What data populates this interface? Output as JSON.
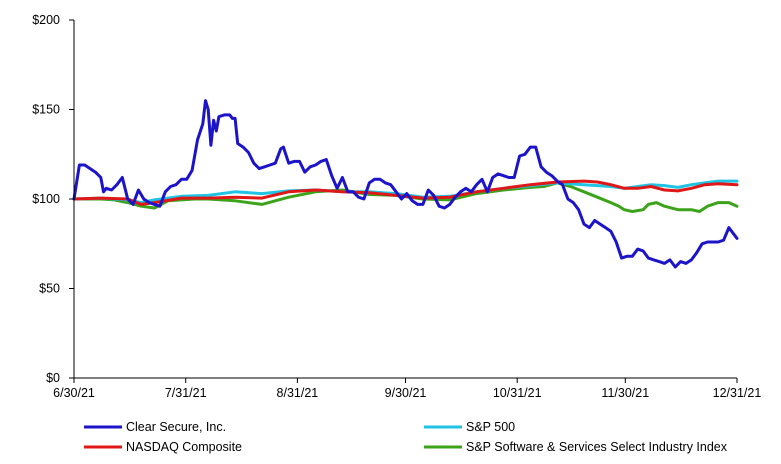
{
  "chart_data": {
    "type": "line",
    "title": "",
    "xlabel": "",
    "ylabel": "",
    "x_labels": [
      "6/30/21",
      "7/31/21",
      "8/31/21",
      "9/30/21",
      "10/31/21",
      "11/30/21",
      "12/31/21"
    ],
    "y_ticks": [
      0,
      50,
      100,
      150,
      200
    ],
    "y_tick_labels": [
      "$0",
      "$50",
      "$100",
      "$150",
      "$200"
    ],
    "ylim": [
      0,
      200
    ],
    "xlim_days": [
      0,
      184
    ],
    "grid": false,
    "legend_position": "bottom",
    "series": [
      {
        "name": "Clear Secure, Inc.",
        "color": "#1c14c8",
        "points": [
          [
            0,
            100
          ],
          [
            2,
            119
          ],
          [
            4,
            119
          ],
          [
            6,
            117
          ],
          [
            8,
            115
          ],
          [
            10,
            112
          ],
          [
            11,
            104
          ],
          [
            12,
            106
          ],
          [
            14,
            105
          ],
          [
            16,
            108
          ],
          [
            18,
            112
          ],
          [
            20,
            100
          ],
          [
            22,
            97
          ],
          [
            24,
            105
          ],
          [
            26,
            100
          ],
          [
            28,
            98
          ],
          [
            30,
            97
          ],
          [
            32,
            96
          ],
          [
            34,
            104
          ],
          [
            36,
            107
          ],
          [
            38,
            108
          ],
          [
            40,
            111
          ],
          [
            42,
            111
          ],
          [
            44,
            116
          ],
          [
            46,
            133
          ],
          [
            48,
            142
          ],
          [
            49,
            155
          ],
          [
            50,
            150
          ],
          [
            51,
            130
          ],
          [
            52,
            144
          ],
          [
            53,
            138
          ],
          [
            54,
            146
          ],
          [
            56,
            147
          ],
          [
            58,
            147
          ],
          [
            59,
            145
          ],
          [
            60,
            145
          ],
          [
            61,
            131
          ],
          [
            63,
            129
          ],
          [
            65,
            126
          ],
          [
            67,
            120
          ],
          [
            69,
            117
          ],
          [
            71,
            118
          ],
          [
            73,
            119
          ],
          [
            75,
            120
          ],
          [
            77,
            128
          ],
          [
            78,
            129
          ],
          [
            80,
            120
          ],
          [
            82,
            121
          ],
          [
            84,
            121
          ],
          [
            86,
            115
          ],
          [
            88,
            118
          ],
          [
            90,
            119
          ],
          [
            92,
            121
          ],
          [
            94,
            122
          ],
          [
            96,
            113
          ],
          [
            98,
            106
          ],
          [
            100,
            112
          ],
          [
            102,
            104
          ],
          [
            104,
            104
          ],
          [
            106,
            101
          ],
          [
            108,
            100
          ],
          [
            110,
            109
          ],
          [
            112,
            111
          ],
          [
            114,
            111
          ],
          [
            116,
            109
          ],
          [
            118,
            108
          ],
          [
            120,
            104
          ],
          [
            122,
            100
          ],
          [
            124,
            103
          ],
          [
            126,
            99
          ],
          [
            128,
            97
          ],
          [
            130,
            97
          ],
          [
            132,
            105
          ],
          [
            134,
            102
          ],
          [
            136,
            96
          ],
          [
            138,
            95
          ],
          [
            140,
            97
          ],
          [
            142,
            101
          ],
          [
            144,
            104
          ],
          [
            146,
            106
          ],
          [
            148,
            104
          ],
          [
            150,
            108
          ],
          [
            152,
            111
          ],
          [
            154,
            104
          ],
          [
            156,
            112
          ],
          [
            158,
            114
          ],
          [
            160,
            113
          ],
          [
            162,
            112
          ],
          [
            164,
            112
          ],
          [
            166,
            124
          ],
          [
            168,
            125
          ],
          [
            170,
            129
          ],
          [
            172,
            129
          ],
          [
            174,
            118
          ],
          [
            176,
            115
          ],
          [
            178,
            113
          ],
          [
            180,
            110
          ],
          [
            182,
            108
          ],
          [
            184,
            100
          ],
          [
            186,
            98
          ],
          [
            188,
            94
          ],
          [
            190,
            86
          ],
          [
            192,
            84
          ],
          [
            194,
            88
          ],
          [
            196,
            86
          ],
          [
            198,
            84
          ],
          [
            200,
            82
          ],
          [
            202,
            76
          ],
          [
            204,
            67
          ],
          [
            206,
            68
          ],
          [
            208,
            68
          ],
          [
            210,
            72
          ],
          [
            212,
            71
          ],
          [
            214,
            67
          ],
          [
            216,
            66
          ],
          [
            218,
            65
          ],
          [
            220,
            64
          ],
          [
            222,
            66
          ],
          [
            224,
            62
          ],
          [
            226,
            65
          ],
          [
            228,
            64
          ],
          [
            230,
            66
          ],
          [
            232,
            70
          ],
          [
            234,
            75
          ],
          [
            236,
            76
          ],
          [
            238,
            76
          ],
          [
            240,
            76
          ],
          [
            242,
            77
          ],
          [
            244,
            84
          ],
          [
            246,
            80
          ],
          [
            247,
            78
          ]
        ]
      },
      {
        "name": "S&P 500",
        "color": "#1fc3e3",
        "points": [
          [
            0,
            100
          ],
          [
            10,
            100.5
          ],
          [
            20,
            99.5
          ],
          [
            25,
            98
          ],
          [
            30,
            99.5
          ],
          [
            40,
            101.5
          ],
          [
            50,
            102
          ],
          [
            60,
            104
          ],
          [
            70,
            103
          ],
          [
            80,
            104.5
          ],
          [
            90,
            105
          ],
          [
            100,
            104
          ],
          [
            110,
            104
          ],
          [
            120,
            103
          ],
          [
            130,
            101
          ],
          [
            140,
            101.5
          ],
          [
            150,
            104
          ],
          [
            160,
            106
          ],
          [
            170,
            107.5
          ],
          [
            180,
            109
          ],
          [
            190,
            108
          ],
          [
            200,
            107
          ],
          [
            205,
            106
          ],
          [
            210,
            107
          ],
          [
            215,
            108
          ],
          [
            220,
            107.5
          ],
          [
            225,
            106.5
          ],
          [
            230,
            108
          ],
          [
            235,
            109
          ],
          [
            240,
            110
          ],
          [
            247,
            110
          ]
        ]
      },
      {
        "name": "NASDAQ Composite",
        "color": "#e01717",
        "points": [
          [
            0,
            100
          ],
          [
            10,
            100.5
          ],
          [
            20,
            100
          ],
          [
            25,
            97
          ],
          [
            30,
            98
          ],
          [
            40,
            100.5
          ],
          [
            50,
            100.5
          ],
          [
            60,
            101
          ],
          [
            70,
            100.5
          ],
          [
            80,
            104
          ],
          [
            90,
            105
          ],
          [
            100,
            104
          ],
          [
            110,
            103.5
          ],
          [
            120,
            102
          ],
          [
            130,
            100.5
          ],
          [
            140,
            101
          ],
          [
            150,
            104
          ],
          [
            160,
            106
          ],
          [
            170,
            108
          ],
          [
            180,
            109.5
          ],
          [
            190,
            110
          ],
          [
            195,
            109.5
          ],
          [
            200,
            108
          ],
          [
            205,
            106
          ],
          [
            210,
            106
          ],
          [
            215,
            107
          ],
          [
            220,
            105
          ],
          [
            225,
            104.5
          ],
          [
            230,
            106
          ],
          [
            235,
            108
          ],
          [
            240,
            108.5
          ],
          [
            247,
            108
          ]
        ]
      },
      {
        "name": "S&P Software & Services Select Industry Index",
        "color": "#3ca31a",
        "points": [
          [
            0,
            100
          ],
          [
            10,
            100
          ],
          [
            15,
            99.5
          ],
          [
            20,
            98
          ],
          [
            25,
            96
          ],
          [
            30,
            95
          ],
          [
            35,
            99
          ],
          [
            40,
            99.5
          ],
          [
            45,
            100
          ],
          [
            50,
            100
          ],
          [
            60,
            99
          ],
          [
            70,
            97
          ],
          [
            80,
            101
          ],
          [
            90,
            104
          ],
          [
            100,
            105
          ],
          [
            110,
            102.5
          ],
          [
            120,
            102
          ],
          [
            130,
            100
          ],
          [
            140,
            99.5
          ],
          [
            150,
            103
          ],
          [
            160,
            105
          ],
          [
            170,
            106.5
          ],
          [
            175,
            107
          ],
          [
            180,
            109
          ],
          [
            185,
            107
          ],
          [
            190,
            104
          ],
          [
            195,
            101
          ],
          [
            200,
            98
          ],
          [
            203,
            96
          ],
          [
            205,
            94
          ],
          [
            208,
            93
          ],
          [
            212,
            94
          ],
          [
            214,
            97
          ],
          [
            217,
            98
          ],
          [
            220,
            96
          ],
          [
            225,
            94
          ],
          [
            230,
            94
          ],
          [
            233,
            93
          ],
          [
            236,
            96
          ],
          [
            240,
            98
          ],
          [
            244,
            98
          ],
          [
            247,
            96
          ]
        ]
      }
    ]
  }
}
